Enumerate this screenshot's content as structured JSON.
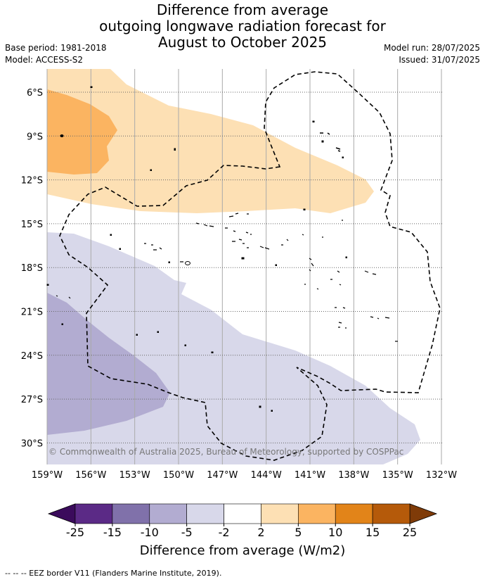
{
  "title": {
    "line1": "Difference from average",
    "line2": "outgoing longwave radiation forecast for",
    "line3": "August to October 2025"
  },
  "meta": {
    "base_period": "Base period: 1981-2018",
    "model": "Model: ACCESS-S2",
    "model_run": "Model run: 28/07/2025",
    "issued": "Issued: 31/07/2025"
  },
  "map": {
    "lat_labels": [
      "6°S",
      "9°S",
      "12°S",
      "15°S",
      "18°S",
      "21°S",
      "24°S",
      "27°S",
      "30°S"
    ],
    "lat_values": [
      -6,
      -9,
      -12,
      -15,
      -18,
      -21,
      -24,
      -27,
      -30
    ],
    "lon_labels": [
      "159°W",
      "156°W",
      "153°W",
      "150°W",
      "147°W",
      "144°W",
      "141°W",
      "138°W",
      "135°W",
      "132°W"
    ],
    "lon_values": [
      -159,
      -156,
      -153,
      -150,
      -147,
      -144,
      -141,
      -138,
      -135,
      -132
    ],
    "copyright": "© Commonwealth of Australia 2025, Bureau of Meteorology, supported by COSPPac"
  },
  "colorbar": {
    "labels": [
      "-25",
      "-15",
      "-10",
      "-5",
      "-2",
      "2",
      "5",
      "10",
      "15",
      "25"
    ],
    "colors": [
      "#5b2a86",
      "#8071aa",
      "#b2acd1",
      "#d8d8ea",
      "#ffffff",
      "#fde0b4",
      "#fbb461",
      "#e28419",
      "#b55a0a"
    ],
    "low_extend_color": "#3b0b5c",
    "high_extend_color": "#7f3b08",
    "label": "Difference from average (W/m2)"
  },
  "footer": "--  --  -- EEZ border V11 (Flanders Marine Institute, 2019)."
}
